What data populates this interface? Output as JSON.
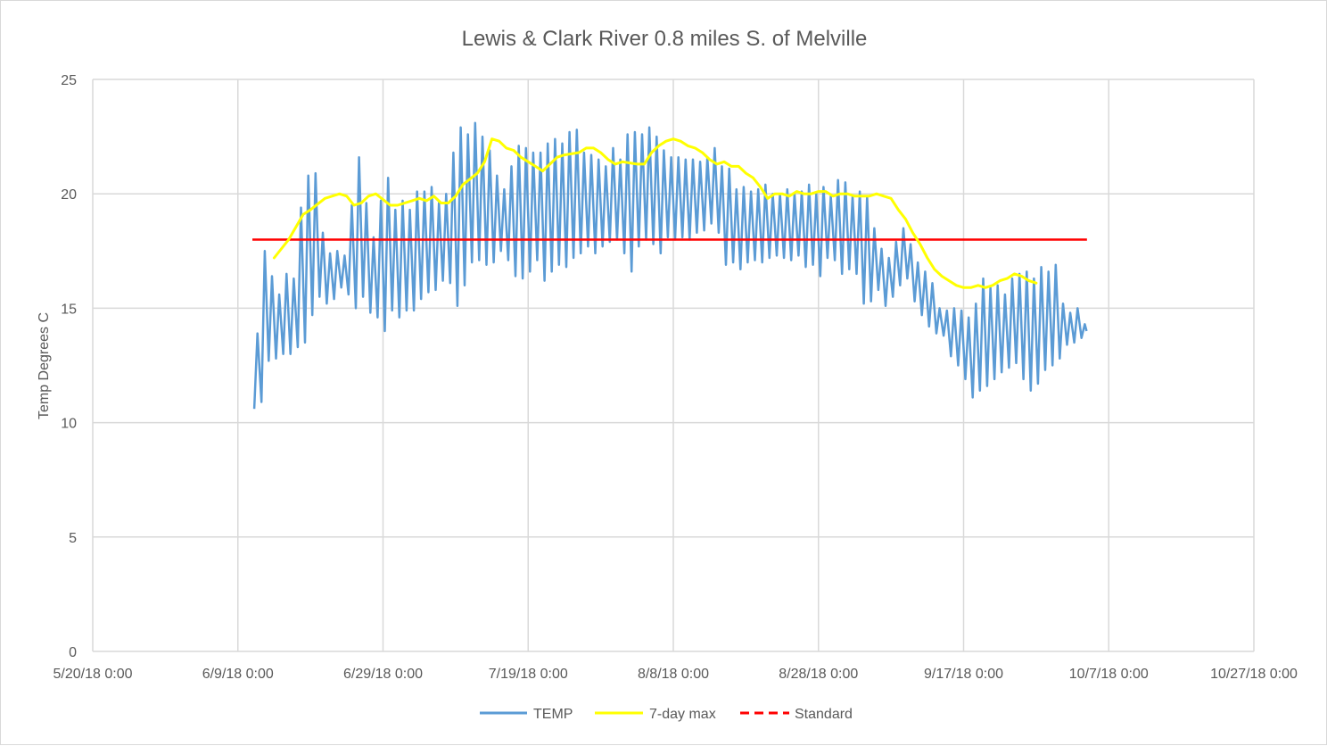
{
  "chart_data": {
    "type": "line",
    "title": "Lewis & Clark River 0.8 miles S. of Melville",
    "ylabel": "Temp Degrees C",
    "xlabel": "",
    "x_axis": {
      "type": "date",
      "min": "2018-05-20",
      "max": "2018-10-27",
      "ticks": [
        "2018-05-20",
        "2018-06-09",
        "2018-06-29",
        "2018-07-19",
        "2018-08-08",
        "2018-08-28",
        "2018-09-17",
        "2018-10-07",
        "2018-10-27"
      ],
      "tick_labels": [
        "5/20/18 0:00",
        "6/9/18 0:00",
        "6/29/18 0:00",
        "7/19/18 0:00",
        "8/8/18 0:00",
        "8/28/18 0:00",
        "9/17/18 0:00",
        "10/7/18 0:00",
        "10/27/18 0:00"
      ]
    },
    "y_axis": {
      "min": 0,
      "max": 25,
      "ticks": [
        0,
        5,
        10,
        15,
        20,
        25
      ]
    },
    "grid": true,
    "legend_position": "bottom",
    "series": [
      {
        "name": "TEMP",
        "color": "#5b9bd5",
        "style": "solid",
        "kind": "diurnal daily min/max",
        "dates": [
          "2018-06-11",
          "2018-06-12",
          "2018-06-13",
          "2018-06-14",
          "2018-06-15",
          "2018-06-16",
          "2018-06-17",
          "2018-06-18",
          "2018-06-19",
          "2018-06-20",
          "2018-06-21",
          "2018-06-22",
          "2018-06-23",
          "2018-06-24",
          "2018-06-25",
          "2018-06-26",
          "2018-06-27",
          "2018-06-28",
          "2018-06-29",
          "2018-06-30",
          "2018-07-01",
          "2018-07-02",
          "2018-07-03",
          "2018-07-04",
          "2018-07-05",
          "2018-07-06",
          "2018-07-07",
          "2018-07-08",
          "2018-07-09",
          "2018-07-10",
          "2018-07-11",
          "2018-07-12",
          "2018-07-13",
          "2018-07-14",
          "2018-07-15",
          "2018-07-16",
          "2018-07-17",
          "2018-07-18",
          "2018-07-19",
          "2018-07-20",
          "2018-07-21",
          "2018-07-22",
          "2018-07-23",
          "2018-07-24",
          "2018-07-25",
          "2018-07-26",
          "2018-07-27",
          "2018-07-28",
          "2018-07-29",
          "2018-07-30",
          "2018-07-31",
          "2018-08-01",
          "2018-08-02",
          "2018-08-03",
          "2018-08-04",
          "2018-08-05",
          "2018-08-06",
          "2018-08-07",
          "2018-08-08",
          "2018-08-09",
          "2018-08-10",
          "2018-08-11",
          "2018-08-12",
          "2018-08-13",
          "2018-08-14",
          "2018-08-15",
          "2018-08-16",
          "2018-08-17",
          "2018-08-18",
          "2018-08-19",
          "2018-08-20",
          "2018-08-21",
          "2018-08-22",
          "2018-08-23",
          "2018-08-24",
          "2018-08-25",
          "2018-08-26",
          "2018-08-27",
          "2018-08-28",
          "2018-08-29",
          "2018-08-30",
          "2018-08-31",
          "2018-09-01",
          "2018-09-02",
          "2018-09-03",
          "2018-09-04",
          "2018-09-05",
          "2018-09-06",
          "2018-09-07",
          "2018-09-08",
          "2018-09-09",
          "2018-09-10",
          "2018-09-11",
          "2018-09-12",
          "2018-09-13",
          "2018-09-14",
          "2018-09-15",
          "2018-09-16",
          "2018-09-17",
          "2018-09-18",
          "2018-09-19",
          "2018-09-20",
          "2018-09-21",
          "2018-09-22",
          "2018-09-23",
          "2018-09-24",
          "2018-09-25",
          "2018-09-26",
          "2018-09-27",
          "2018-09-28",
          "2018-09-29",
          "2018-09-30",
          "2018-10-01",
          "2018-10-02",
          "2018-10-03"
        ],
        "min": [
          10.6,
          10.9,
          12.7,
          12.8,
          13.0,
          13.0,
          13.3,
          13.5,
          14.7,
          15.5,
          15.2,
          15.4,
          15.9,
          15.6,
          15.0,
          15.5,
          14.8,
          14.6,
          14.0,
          14.9,
          14.6,
          14.9,
          14.9,
          15.4,
          15.7,
          15.8,
          16.2,
          16.1,
          15.1,
          16.0,
          17.0,
          17.1,
          16.9,
          17.0,
          17.5,
          17.1,
          16.4,
          16.3,
          16.6,
          17.1,
          16.2,
          16.6,
          16.9,
          16.8,
          17.2,
          17.4,
          17.7,
          17.4,
          17.7,
          17.9,
          18.0,
          17.4,
          16.6,
          17.7,
          18.0,
          17.8,
          17.4,
          18.1,
          18.0,
          18.1,
          18.0,
          18.3,
          18.4,
          18.7,
          18.3,
          16.9,
          17.0,
          16.7,
          17.0,
          17.1,
          17.0,
          17.2,
          17.3,
          17.2,
          17.1,
          17.3,
          16.8,
          16.9,
          16.4,
          17.2,
          17.1,
          16.5,
          16.7,
          16.5,
          15.2,
          15.3,
          15.8,
          15.1,
          15.5,
          16.0,
          16.3,
          15.3,
          14.7,
          14.2,
          13.9,
          13.8,
          12.9,
          12.5,
          11.9,
          11.1,
          11.4,
          11.6,
          11.9,
          12.2,
          12.4,
          12.6,
          11.9,
          11.4,
          11.7,
          12.3,
          12.5,
          12.8,
          13.4,
          13.5,
          13.7
        ],
        "max": [
          13.9,
          17.5,
          16.4,
          15.6,
          16.5,
          16.3,
          19.4,
          20.8,
          20.9,
          18.3,
          17.4,
          17.5,
          17.3,
          19.5,
          21.6,
          19.6,
          18.1,
          19.7,
          20.7,
          19.3,
          19.7,
          19.3,
          20.1,
          20.1,
          20.3,
          19.6,
          20.0,
          21.8,
          22.9,
          22.6,
          23.1,
          22.5,
          21.9,
          20.8,
          20.2,
          21.2,
          22.1,
          22.0,
          21.8,
          21.8,
          22.2,
          22.4,
          22.2,
          22.7,
          22.8,
          21.8,
          21.7,
          21.5,
          21.2,
          22.0,
          21.5,
          22.6,
          22.7,
          22.6,
          22.9,
          22.5,
          21.9,
          21.6,
          21.6,
          21.5,
          21.5,
          21.4,
          21.6,
          22.0,
          21.2,
          21.1,
          20.2,
          20.3,
          20.1,
          20.2,
          20.4,
          20.0,
          20.0,
          20.2,
          20.0,
          20.1,
          20.4,
          20.0,
          20.3,
          19.9,
          20.6,
          20.5,
          19.9,
          20.1,
          19.9,
          18.5,
          17.6,
          17.2,
          17.9,
          18.5,
          17.8,
          17.0,
          16.6,
          16.1,
          15.0,
          14.9,
          15.0,
          14.9,
          14.6,
          15.2,
          16.3,
          15.9,
          16.0,
          15.6,
          16.3,
          16.5,
          16.6,
          16.3,
          16.8,
          16.6,
          16.9,
          15.2,
          14.8,
          15.0,
          14.3
        ]
      },
      {
        "name": "7-day max",
        "color": "#ffff00",
        "style": "solid",
        "points": [
          [
            "2018-06-14",
            17.2
          ],
          [
            "2018-06-16",
            18.0
          ],
          [
            "2018-06-18",
            19.1
          ],
          [
            "2018-06-19",
            19.3
          ],
          [
            "2018-06-21",
            19.8
          ],
          [
            "2018-06-23",
            20.0
          ],
          [
            "2018-06-24",
            19.9
          ],
          [
            "2018-06-25",
            19.5
          ],
          [
            "2018-06-26",
            19.6
          ],
          [
            "2018-06-27",
            19.9
          ],
          [
            "2018-06-28",
            20.0
          ],
          [
            "2018-06-30",
            19.5
          ],
          [
            "2018-07-01",
            19.5
          ],
          [
            "2018-07-03",
            19.7
          ],
          [
            "2018-07-04",
            19.8
          ],
          [
            "2018-07-05",
            19.7
          ],
          [
            "2018-07-06",
            19.9
          ],
          [
            "2018-07-07",
            19.6
          ],
          [
            "2018-07-08",
            19.6
          ],
          [
            "2018-07-09",
            19.9
          ],
          [
            "2018-07-10",
            20.4
          ],
          [
            "2018-07-12",
            20.9
          ],
          [
            "2018-07-13",
            21.4
          ],
          [
            "2018-07-14",
            22.4
          ],
          [
            "2018-07-15",
            22.3
          ],
          [
            "2018-07-16",
            22.0
          ],
          [
            "2018-07-17",
            21.9
          ],
          [
            "2018-07-18",
            21.6
          ],
          [
            "2018-07-19",
            21.4
          ],
          [
            "2018-07-20",
            21.2
          ],
          [
            "2018-07-21",
            21.0
          ],
          [
            "2018-07-22",
            21.3
          ],
          [
            "2018-07-23",
            21.6
          ],
          [
            "2018-07-24",
            21.7
          ],
          [
            "2018-07-26",
            21.8
          ],
          [
            "2018-07-27",
            22.0
          ],
          [
            "2018-07-28",
            22.0
          ],
          [
            "2018-07-29",
            21.8
          ],
          [
            "2018-07-30",
            21.5
          ],
          [
            "2018-07-31",
            21.3
          ],
          [
            "2018-08-01",
            21.4
          ],
          [
            "2018-08-03",
            21.3
          ],
          [
            "2018-08-04",
            21.3
          ],
          [
            "2018-08-05",
            21.8
          ],
          [
            "2018-08-06",
            22.1
          ],
          [
            "2018-08-07",
            22.3
          ],
          [
            "2018-08-08",
            22.4
          ],
          [
            "2018-08-09",
            22.3
          ],
          [
            "2018-08-10",
            22.1
          ],
          [
            "2018-08-11",
            22.0
          ],
          [
            "2018-08-12",
            21.8
          ],
          [
            "2018-08-13",
            21.5
          ],
          [
            "2018-08-14",
            21.3
          ],
          [
            "2018-08-15",
            21.4
          ],
          [
            "2018-08-16",
            21.2
          ],
          [
            "2018-08-17",
            21.2
          ],
          [
            "2018-08-18",
            20.9
          ],
          [
            "2018-08-19",
            20.7
          ],
          [
            "2018-08-20",
            20.3
          ],
          [
            "2018-08-21",
            19.8
          ],
          [
            "2018-08-22",
            20.0
          ],
          [
            "2018-08-23",
            20.0
          ],
          [
            "2018-08-24",
            19.9
          ],
          [
            "2018-08-25",
            20.1
          ],
          [
            "2018-08-26",
            20.0
          ],
          [
            "2018-08-27",
            20.0
          ],
          [
            "2018-08-28",
            20.1
          ],
          [
            "2018-08-29",
            20.1
          ],
          [
            "2018-08-30",
            19.9
          ],
          [
            "2018-08-31",
            20.0
          ],
          [
            "2018-09-01",
            20.0
          ],
          [
            "2018-09-02",
            19.9
          ],
          [
            "2018-09-03",
            19.9
          ],
          [
            "2018-09-04",
            19.9
          ],
          [
            "2018-09-05",
            20.0
          ],
          [
            "2018-09-06",
            19.9
          ],
          [
            "2018-09-07",
            19.8
          ],
          [
            "2018-09-08",
            19.3
          ],
          [
            "2018-09-09",
            18.9
          ],
          [
            "2018-09-10",
            18.3
          ],
          [
            "2018-09-11",
            17.8
          ],
          [
            "2018-09-12",
            17.2
          ],
          [
            "2018-09-13",
            16.7
          ],
          [
            "2018-09-14",
            16.4
          ],
          [
            "2018-09-15",
            16.2
          ],
          [
            "2018-09-16",
            16.0
          ],
          [
            "2018-09-17",
            15.9
          ],
          [
            "2018-09-18",
            15.9
          ],
          [
            "2018-09-19",
            16.0
          ],
          [
            "2018-09-20",
            15.9
          ],
          [
            "2018-09-21",
            16.0
          ],
          [
            "2018-09-22",
            16.2
          ],
          [
            "2018-09-23",
            16.3
          ],
          [
            "2018-09-24",
            16.5
          ],
          [
            "2018-09-25",
            16.4
          ],
          [
            "2018-09-26",
            16.2
          ],
          [
            "2018-09-27",
            16.1
          ]
        ]
      },
      {
        "name": "Standard",
        "color": "#ff0000",
        "style": "dashed",
        "points": [
          [
            "2018-06-11",
            18.0
          ],
          [
            "2018-10-04",
            18.0
          ]
        ]
      }
    ]
  }
}
